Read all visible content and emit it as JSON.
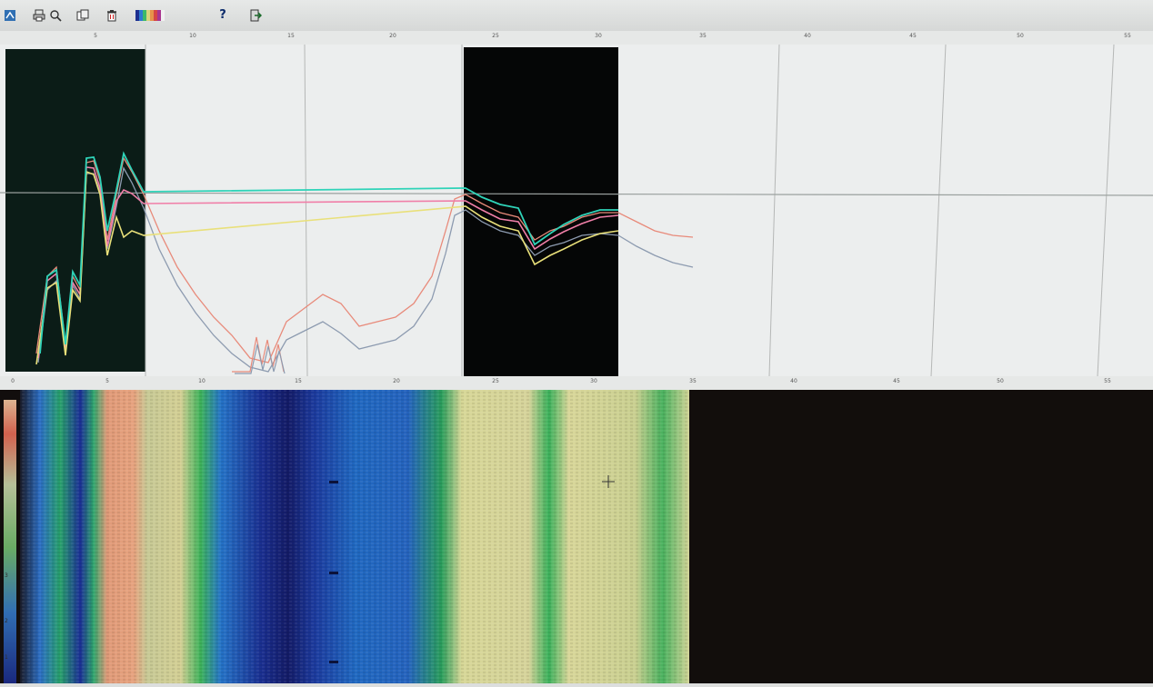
{
  "toolbar": {
    "buttons": [
      {
        "name": "app-icon"
      },
      {
        "name": "print-icon"
      },
      {
        "name": "zoom-icon"
      },
      {
        "name": "copy-icon"
      },
      {
        "name": "delete-icon"
      },
      {
        "name": "palette-icon"
      },
      {
        "name": "help-icon",
        "label": "?"
      },
      {
        "name": "exit-icon"
      }
    ],
    "help_label": "?"
  },
  "ruler_labels": [
    "5",
    "10",
    "15",
    "20",
    "25",
    "30",
    "35",
    "40",
    "45",
    "50",
    "55"
  ],
  "mid_ruler_labels": [
    "0",
    "5",
    "10",
    "15",
    "20",
    "25",
    "30",
    "35",
    "40",
    "45",
    "50",
    "55"
  ],
  "colorbar_ticks": [
    "3",
    "2",
    "1"
  ],
  "colors": {
    "trace_cyan": "#2fd3b8",
    "trace_pink": "#f07fa8",
    "trace_red": "#e88a7a",
    "trace_yellow": "#e9e07a",
    "trace_gray": "#8d9bb0",
    "dark_band": "#08100f",
    "panel_bg": "#eceeee"
  }
}
